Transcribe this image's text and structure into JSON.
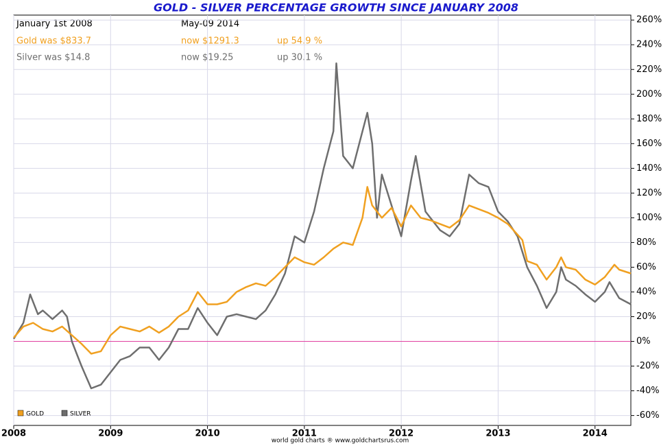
{
  "chart_data": {
    "type": "line",
    "title": "GOLD - SILVER PERCENTAGE GROWTH SINCE JANUARY 2008",
    "annotations": {
      "start_date": "January 1st 2008",
      "end_date": "May-09  2014",
      "gold_start": "Gold was $833.7",
      "gold_now": "now $1291.3",
      "gold_up": "up 54.9 %",
      "silver_start": "Silver was $14.8",
      "silver_now": "now $19.25",
      "silver_up": "up 30.1 %",
      "footer": "world gold charts ® www.goldchartsrus.com"
    },
    "series": [
      {
        "name": "GOLD",
        "color": "#f0a020",
        "x": [
          2008.0,
          2008.1,
          2008.2,
          2008.3,
          2008.4,
          2008.5,
          2008.6,
          2008.7,
          2008.8,
          2008.9,
          2009.0,
          2009.1,
          2009.2,
          2009.3,
          2009.4,
          2009.5,
          2009.6,
          2009.7,
          2009.8,
          2009.9,
          2010.0,
          2010.1,
          2010.2,
          2010.3,
          2010.4,
          2010.5,
          2010.6,
          2010.7,
          2010.8,
          2010.9,
          2011.0,
          2011.1,
          2011.2,
          2011.3,
          2011.4,
          2011.5,
          2011.6,
          2011.65,
          2011.7,
          2011.8,
          2011.9,
          2012.0,
          2012.1,
          2012.2,
          2012.3,
          2012.4,
          2012.5,
          2012.6,
          2012.7,
          2012.8,
          2012.9,
          2013.0,
          2013.1,
          2013.25,
          2013.3,
          2013.4,
          2013.5,
          2013.6,
          2013.65,
          2013.7,
          2013.8,
          2013.9,
          2014.0,
          2014.1,
          2014.2,
          2014.25,
          2014.37
        ],
        "values": [
          3,
          12,
          15,
          10,
          8,
          12,
          5,
          -2,
          -10,
          -8,
          5,
          12,
          10,
          8,
          12,
          7,
          12,
          20,
          25,
          40,
          30,
          30,
          32,
          40,
          44,
          47,
          45,
          52,
          60,
          68,
          64,
          62,
          68,
          75,
          80,
          78,
          100,
          125,
          110,
          100,
          108,
          93,
          110,
          100,
          98,
          95,
          92,
          98,
          110,
          107,
          104,
          100,
          95,
          82,
          65,
          62,
          50,
          60,
          68,
          60,
          58,
          50,
          46,
          52,
          62,
          58,
          55
        ]
      },
      {
        "name": "SILVER",
        "color": "#6e6e6e",
        "x": [
          2008.0,
          2008.1,
          2008.17,
          2008.25,
          2008.3,
          2008.4,
          2008.5,
          2008.55,
          2008.6,
          2008.65,
          2008.7,
          2008.8,
          2008.9,
          2009.0,
          2009.1,
          2009.2,
          2009.3,
          2009.4,
          2009.5,
          2009.6,
          2009.7,
          2009.8,
          2009.9,
          2010.0,
          2010.1,
          2010.2,
          2010.3,
          2010.4,
          2010.5,
          2010.6,
          2010.7,
          2010.8,
          2010.9,
          2011.0,
          2011.1,
          2011.2,
          2011.3,
          2011.33,
          2011.4,
          2011.5,
          2011.6,
          2011.65,
          2011.7,
          2011.75,
          2011.8,
          2011.9,
          2012.0,
          2012.1,
          2012.15,
          2012.25,
          2012.4,
          2012.5,
          2012.6,
          2012.7,
          2012.8,
          2012.9,
          2013.0,
          2013.1,
          2013.2,
          2013.3,
          2013.4,
          2013.5,
          2013.6,
          2013.65,
          2013.7,
          2013.8,
          2013.9,
          2014.0,
          2014.1,
          2014.15,
          2014.25,
          2014.37
        ],
        "values": [
          2,
          15,
          38,
          22,
          25,
          18,
          25,
          20,
          0,
          -10,
          -20,
          -38,
          -35,
          -25,
          -15,
          -12,
          -5,
          -5,
          -15,
          -5,
          10,
          10,
          27,
          15,
          5,
          20,
          22,
          20,
          18,
          25,
          38,
          55,
          85,
          80,
          105,
          140,
          170,
          225,
          150,
          140,
          170,
          185,
          160,
          100,
          135,
          110,
          85,
          130,
          150,
          105,
          90,
          85,
          95,
          135,
          128,
          125,
          105,
          97,
          85,
          60,
          45,
          27,
          40,
          60,
          50,
          45,
          38,
          32,
          40,
          48,
          35,
          30
        ]
      }
    ],
    "xlim": [
      2008,
      2014.37
    ],
    "xticks": [
      2008,
      2009,
      2010,
      2011,
      2012,
      2013,
      2014
    ],
    "ylim": [
      -68,
      264
    ],
    "yticks": [
      {
        "value": -60,
        "label": "-60%"
      },
      {
        "value": -40,
        "label": "-40%"
      },
      {
        "value": -20,
        "label": "-20%"
      },
      {
        "value": 0,
        "label": "0%"
      },
      {
        "value": 20,
        "label": "20%"
      },
      {
        "value": 40,
        "label": "40%"
      },
      {
        "value": 60,
        "label": "60%"
      },
      {
        "value": 80,
        "label": "80%"
      },
      {
        "value": 100,
        "label": "100%"
      },
      {
        "value": 120,
        "label": "120%"
      },
      {
        "value": 140,
        "label": "140%"
      },
      {
        "value": 160,
        "label": "160%"
      },
      {
        "value": 180,
        "label": "180%"
      },
      {
        "value": 200,
        "label": "200%"
      },
      {
        "value": 220,
        "label": "220%"
      },
      {
        "value": 240,
        "label": "240%"
      },
      {
        "value": 260,
        "label": "260%"
      }
    ],
    "grid": true,
    "legend": "bottom-left"
  }
}
